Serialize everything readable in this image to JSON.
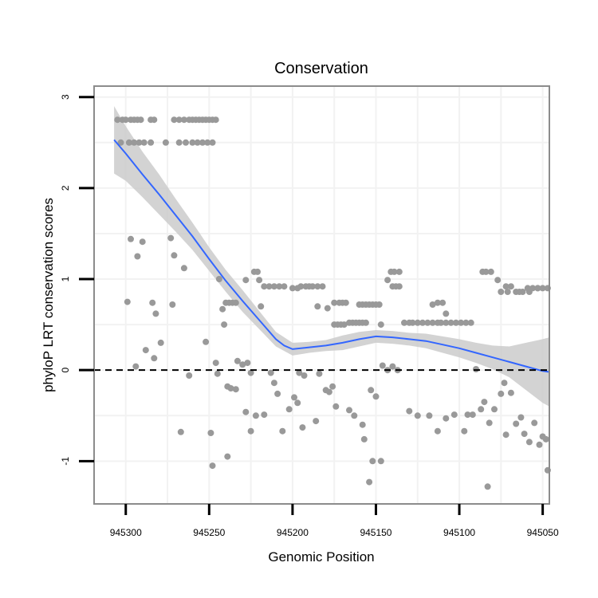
{
  "chart_data": {
    "type": "scatter",
    "title": "Conservation",
    "xlabel": "Genomic Position",
    "ylabel": "phyloP LRT conservation scores",
    "x_reversed": true,
    "xlim": [
      945319,
      945046
    ],
    "ylim": [
      -1.47,
      3.12
    ],
    "x_ticks": [
      945300,
      945250,
      945200,
      945150,
      945100,
      945050
    ],
    "y_ticks": [
      -1,
      0,
      1,
      2,
      3
    ],
    "reference_line": {
      "y": 0,
      "style": "dashed"
    },
    "grid": true,
    "colors": {
      "points": "#999999",
      "smooth_line": "#3366FF",
      "ribbon": "#C8C8C8",
      "panel_border": "#8C8C8C",
      "grid": "#F2F2F2",
      "reference_line": "#000000"
    },
    "series": [
      {
        "name": "points",
        "points": [
          [
            945305,
            2.75
          ],
          [
            945302,
            2.75
          ],
          [
            945300,
            2.75
          ],
          [
            945297,
            2.75
          ],
          [
            945295,
            2.75
          ],
          [
            945293,
            2.75
          ],
          [
            945291,
            2.75
          ],
          [
            945285,
            2.75
          ],
          [
            945283,
            2.75
          ],
          [
            945271,
            2.75
          ],
          [
            945268,
            2.75
          ],
          [
            945265,
            2.75
          ],
          [
            945262,
            2.75
          ],
          [
            945260,
            2.75
          ],
          [
            945258,
            2.75
          ],
          [
            945256,
            2.75
          ],
          [
            945254,
            2.75
          ],
          [
            945252,
            2.75
          ],
          [
            945250,
            2.75
          ],
          [
            945248,
            2.75
          ],
          [
            945246,
            2.75
          ],
          [
            945303,
            2.5
          ],
          [
            945298,
            2.5
          ],
          [
            945295,
            2.5
          ],
          [
            945292,
            2.5
          ],
          [
            945289,
            2.5
          ],
          [
            945285,
            2.5
          ],
          [
            945276,
            2.5
          ],
          [
            945268,
            2.5
          ],
          [
            945264,
            2.5
          ],
          [
            945260,
            2.5
          ],
          [
            945257,
            2.5
          ],
          [
            945254,
            2.5
          ],
          [
            945251,
            2.5
          ],
          [
            945248,
            2.5
          ],
          [
            945297,
            1.44
          ],
          [
            945290,
            1.41
          ],
          [
            945293,
            1.25
          ],
          [
            945273,
            1.45
          ],
          [
            945271,
            1.26
          ],
          [
            945265,
            1.12
          ],
          [
            945299,
            0.75
          ],
          [
            945284,
            0.74
          ],
          [
            945282,
            0.62
          ],
          [
            945272,
            0.72
          ],
          [
            945288,
            0.22
          ],
          [
            945283,
            0.13
          ],
          [
            945279,
            0.3
          ],
          [
            945294,
            0.04
          ],
          [
            945262,
            -0.06
          ],
          [
            945252,
            0.31
          ],
          [
            945267,
            -0.68
          ],
          [
            945249,
            -0.69
          ],
          [
            945248,
            -1.05
          ],
          [
            945239,
            -0.95
          ],
          [
            945244,
            1.0
          ],
          [
            945242,
            0.67
          ],
          [
            945240,
            0.74
          ],
          [
            945238,
            0.74
          ],
          [
            945236,
            0.74
          ],
          [
            945234,
            0.74
          ],
          [
            945241,
            0.5
          ],
          [
            945246,
            0.08
          ],
          [
            945245,
            -0.04
          ],
          [
            945239,
            -0.18
          ],
          [
            945237,
            -0.2
          ],
          [
            945234,
            -0.21
          ],
          [
            945233,
            0.1
          ],
          [
            945230,
            0.06
          ],
          [
            945227,
            0.08
          ],
          [
            945225,
            -0.03
          ],
          [
            945228,
            -0.46
          ],
          [
            945225,
            -0.67
          ],
          [
            945222,
            -0.5
          ],
          [
            945228,
            0.99
          ],
          [
            945223,
            1.08
          ],
          [
            945221,
            1.08
          ],
          [
            945220,
            0.99
          ],
          [
            945217,
            0.92
          ],
          [
            945214,
            0.92
          ],
          [
            945211,
            0.92
          ],
          [
            945208,
            0.92
          ],
          [
            945205,
            0.92
          ],
          [
            945219,
            0.7
          ],
          [
            945217,
            -0.49
          ],
          [
            945213,
            -0.03
          ],
          [
            945211,
            -0.14
          ],
          [
            945209,
            -0.26
          ],
          [
            945206,
            -0.67
          ],
          [
            945202,
            -0.43
          ],
          [
            945199,
            -0.3
          ],
          [
            945196,
            -0.03
          ],
          [
            945193,
            -0.06
          ],
          [
            945200,
            0.9
          ],
          [
            945197,
            0.9
          ],
          [
            945195,
            0.92
          ],
          [
            945192,
            0.92
          ],
          [
            945190,
            0.92
          ],
          [
            945188,
            0.92
          ],
          [
            945185,
            0.92
          ],
          [
            945182,
            0.92
          ],
          [
            945197,
            -0.36
          ],
          [
            945194,
            -0.63
          ],
          [
            945186,
            -0.56
          ],
          [
            945184,
            -0.04
          ],
          [
            945180,
            -0.22
          ],
          [
            945178,
            -0.24
          ],
          [
            945185,
            0.7
          ],
          [
            945179,
            0.68
          ],
          [
            945175,
            0.74
          ],
          [
            945172,
            0.74
          ],
          [
            945170,
            0.74
          ],
          [
            945168,
            0.74
          ],
          [
            945175,
            0.5
          ],
          [
            945173,
            0.5
          ],
          [
            945171,
            0.5
          ],
          [
            945169,
            0.5
          ],
          [
            945166,
            0.52
          ],
          [
            945164,
            0.52
          ],
          [
            945162,
            0.52
          ],
          [
            945160,
            0.52
          ],
          [
            945158,
            0.52
          ],
          [
            945156,
            0.52
          ],
          [
            945176,
            -0.18
          ],
          [
            945174,
            -0.4
          ],
          [
            945166,
            -0.44
          ],
          [
            945163,
            -0.5
          ],
          [
            945158,
            -0.6
          ],
          [
            945157,
            -0.76
          ],
          [
            945160,
            0.72
          ],
          [
            945158,
            0.72
          ],
          [
            945156,
            0.72
          ],
          [
            945154,
            0.72
          ],
          [
            945152,
            0.72
          ],
          [
            945150,
            0.72
          ],
          [
            945148,
            0.72
          ],
          [
            945154,
            -1.23
          ],
          [
            945152,
            -1.0
          ],
          [
            945147,
            -1.0
          ],
          [
            945153,
            -0.22
          ],
          [
            945150,
            -0.29
          ],
          [
            945146,
            0.05
          ],
          [
            945143,
            0.0
          ],
          [
            945140,
            0.04
          ],
          [
            945137,
            0.0
          ],
          [
            945147,
            0.5
          ],
          [
            945143,
            0.99
          ],
          [
            945141,
            1.08
          ],
          [
            945139,
            1.08
          ],
          [
            945136,
            1.08
          ],
          [
            945140,
            0.92
          ],
          [
            945138,
            0.92
          ],
          [
            945136,
            0.92
          ],
          [
            945133,
            0.52
          ],
          [
            945130,
            0.52
          ],
          [
            945128,
            0.52
          ],
          [
            945125,
            0.52
          ],
          [
            945122,
            0.52
          ],
          [
            945119,
            0.52
          ],
          [
            945116,
            0.52
          ],
          [
            945113,
            0.52
          ],
          [
            945111,
            0.52
          ],
          [
            945108,
            0.52
          ],
          [
            945105,
            0.52
          ],
          [
            945102,
            0.52
          ],
          [
            945099,
            0.52
          ],
          [
            945096,
            0.52
          ],
          [
            945093,
            0.52
          ],
          [
            945116,
            0.72
          ],
          [
            945113,
            0.74
          ],
          [
            945110,
            0.74
          ],
          [
            945108,
            0.62
          ],
          [
            945130,
            -0.45
          ],
          [
            945125,
            -0.5
          ],
          [
            945118,
            -0.5
          ],
          [
            945113,
            -0.67
          ],
          [
            945108,
            -0.53
          ],
          [
            945103,
            -0.49
          ],
          [
            945097,
            -0.67
          ],
          [
            945095,
            -0.49
          ],
          [
            945092,
            -0.49
          ],
          [
            945086,
            1.08
          ],
          [
            945084,
            1.08
          ],
          [
            945081,
            1.08
          ],
          [
            945077,
            0.99
          ],
          [
            945072,
            0.92
          ],
          [
            945069,
            0.92
          ],
          [
            945066,
            0.86
          ],
          [
            945062,
            0.86
          ],
          [
            945059,
            0.9
          ],
          [
            945056,
            0.9
          ],
          [
            945053,
            0.9
          ],
          [
            945050,
            0.9
          ],
          [
            945047,
            0.9
          ],
          [
            945075,
            0.86
          ],
          [
            945071,
            0.86
          ],
          [
            945064,
            0.86
          ],
          [
            945058,
            0.86
          ],
          [
            945053,
            0.9
          ],
          [
            945090,
            0.01
          ],
          [
            945087,
            -0.43
          ],
          [
            945085,
            -0.35
          ],
          [
            945082,
            -0.58
          ],
          [
            945079,
            -0.43
          ],
          [
            945075,
            -0.26
          ],
          [
            945073,
            -0.14
          ],
          [
            945069,
            -0.25
          ],
          [
            945066,
            -0.59
          ],
          [
            945063,
            -0.52
          ],
          [
            945061,
            -0.7
          ],
          [
            945058,
            -0.79
          ],
          [
            945055,
            -0.58
          ],
          [
            945052,
            -0.82
          ],
          [
            945050,
            -0.73
          ],
          [
            945048,
            -0.76
          ],
          [
            945047,
            -1.1
          ],
          [
            945083,
            -1.28
          ],
          [
            945072,
            -0.71
          ]
        ]
      },
      {
        "name": "loess",
        "line": [
          [
            945307,
            2.53
          ],
          [
            945300,
            2.38
          ],
          [
            945290,
            2.15
          ],
          [
            945280,
            1.93
          ],
          [
            945270,
            1.7
          ],
          [
            945260,
            1.47
          ],
          [
            945250,
            1.22
          ],
          [
            945240,
            0.98
          ],
          [
            945230,
            0.76
          ],
          [
            945220,
            0.55
          ],
          [
            945210,
            0.34
          ],
          [
            945205,
            0.27
          ],
          [
            945200,
            0.23
          ],
          [
            945190,
            0.25
          ],
          [
            945180,
            0.27
          ],
          [
            945170,
            0.3
          ],
          [
            945160,
            0.34
          ],
          [
            945150,
            0.37
          ],
          [
            945140,
            0.36
          ],
          [
            945130,
            0.34
          ],
          [
            945120,
            0.32
          ],
          [
            945110,
            0.28
          ],
          [
            945100,
            0.24
          ],
          [
            945090,
            0.19
          ],
          [
            945080,
            0.14
          ],
          [
            945070,
            0.09
          ],
          [
            945060,
            0.04
          ],
          [
            945050,
            -0.01
          ],
          [
            945046,
            -0.02
          ]
        ],
        "ribbon_upper": [
          [
            945307,
            2.9
          ],
          [
            945300,
            2.68
          ],
          [
            945290,
            2.4
          ],
          [
            945280,
            2.15
          ],
          [
            945270,
            1.88
          ],
          [
            945260,
            1.62
          ],
          [
            945250,
            1.35
          ],
          [
            945240,
            1.1
          ],
          [
            945230,
            0.88
          ],
          [
            945220,
            0.65
          ],
          [
            945210,
            0.42
          ],
          [
            945200,
            0.3
          ],
          [
            945190,
            0.31
          ],
          [
            945180,
            0.33
          ],
          [
            945170,
            0.38
          ],
          [
            945160,
            0.42
          ],
          [
            945150,
            0.44
          ],
          [
            945140,
            0.43
          ],
          [
            945130,
            0.41
          ],
          [
            945120,
            0.4
          ],
          [
            945110,
            0.37
          ],
          [
            945100,
            0.34
          ],
          [
            945090,
            0.3
          ],
          [
            945080,
            0.27
          ],
          [
            945070,
            0.26
          ],
          [
            945060,
            0.3
          ],
          [
            945050,
            0.34
          ],
          [
            945046,
            0.36
          ]
        ],
        "ribbon_lower": [
          [
            945307,
            2.16
          ],
          [
            945300,
            2.08
          ],
          [
            945290,
            1.9
          ],
          [
            945280,
            1.71
          ],
          [
            945270,
            1.52
          ],
          [
            945260,
            1.32
          ],
          [
            945250,
            1.09
          ],
          [
            945240,
            0.86
          ],
          [
            945230,
            0.64
          ],
          [
            945220,
            0.45
          ],
          [
            945210,
            0.26
          ],
          [
            945200,
            0.16
          ],
          [
            945190,
            0.19
          ],
          [
            945180,
            0.21
          ],
          [
            945170,
            0.22
          ],
          [
            945160,
            0.26
          ],
          [
            945150,
            0.3
          ],
          [
            945140,
            0.29
          ],
          [
            945130,
            0.27
          ],
          [
            945120,
            0.24
          ],
          [
            945110,
            0.19
          ],
          [
            945100,
            0.14
          ],
          [
            945090,
            0.08
          ],
          [
            945080,
            0.01
          ],
          [
            945070,
            -0.08
          ],
          [
            945060,
            -0.22
          ],
          [
            945050,
            -0.36
          ],
          [
            945046,
            -0.4
          ]
        ]
      }
    ]
  }
}
